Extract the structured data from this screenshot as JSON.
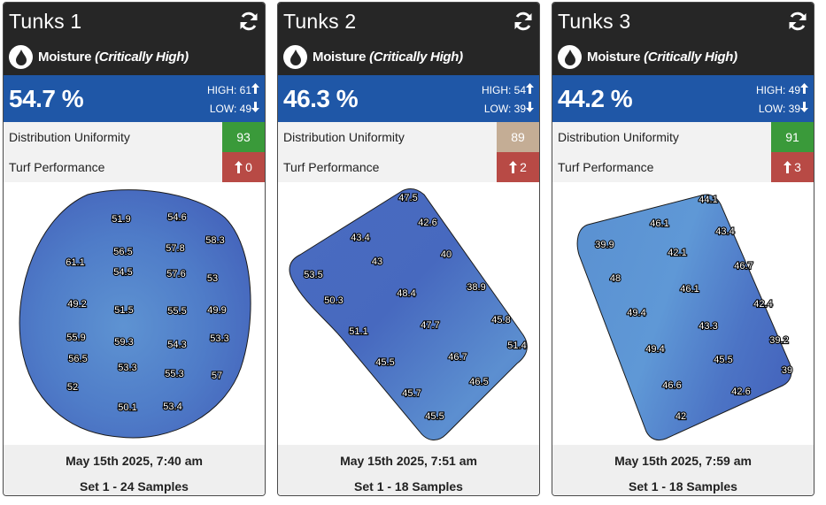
{
  "colors": {
    "header": "#262626",
    "band": "#1f57a7",
    "green": "#3a9a3a",
    "tan": "#c4ad95",
    "red": "#b84a45"
  },
  "cards": [
    {
      "title": "Tunks 1",
      "moisture_label": "Moisture",
      "moisture_status": "(Critically High)",
      "value": "54.7 %",
      "high": "HIGH: 61",
      "low": "LOW: 49",
      "du_label": "Distribution Uniformity",
      "du_value": "93",
      "du_color": "green",
      "turf_label": "Turf Performance",
      "turf_value": "0",
      "date": "May 15th 2025, 7:40 am",
      "samples": "Set 1 - 24 Samples",
      "readings": [
        "51.9",
        "54.6",
        "58.3",
        "56.5",
        "57.8",
        "61.1",
        "54.5",
        "57.6",
        "53",
        "49.2",
        "51.5",
        "55.5",
        "49.9",
        "55.9",
        "59.3",
        "54.3",
        "53.3",
        "56.5",
        "53.3",
        "55.3",
        "57",
        "52",
        "50.1",
        "53.4"
      ]
    },
    {
      "title": "Tunks 2",
      "moisture_label": "Moisture",
      "moisture_status": "(Critically High)",
      "value": "46.3 %",
      "high": "HIGH: 54",
      "low": "LOW: 39",
      "du_label": "Distribution Uniformity",
      "du_value": "89",
      "du_color": "tan",
      "turf_label": "Turf Performance",
      "turf_value": "2",
      "date": "May 15th 2025, 7:51 am",
      "samples": "Set 1 - 18 Samples",
      "readings": [
        "47.5",
        "42.6",
        "43.4",
        "40",
        "43",
        "53.5",
        "38.9",
        "48.4",
        "50.3",
        "45.8",
        "47.7",
        "51.1",
        "51.4",
        "46.7",
        "45.5",
        "46.5",
        "45.7",
        "45.5"
      ]
    },
    {
      "title": "Tunks 3",
      "moisture_label": "Moisture",
      "moisture_status": "(Critically High)",
      "value": "44.2 %",
      "high": "HIGH: 49",
      "low": "LOW: 39",
      "du_label": "Distribution Uniformity",
      "du_value": "91",
      "du_color": "green",
      "turf_label": "Turf Performance",
      "turf_value": "3",
      "date": "May 15th 2025, 7:59 am",
      "samples": "Set 1 - 18 Samples",
      "readings": [
        "44.1",
        "46.1",
        "43.4",
        "39.9",
        "42.1",
        "46.7",
        "48",
        "46.1",
        "42.4",
        "49.4",
        "43.3",
        "39.2",
        "49.4",
        "45.5",
        "39",
        "46.6",
        "42.6",
        "42"
      ]
    }
  ]
}
